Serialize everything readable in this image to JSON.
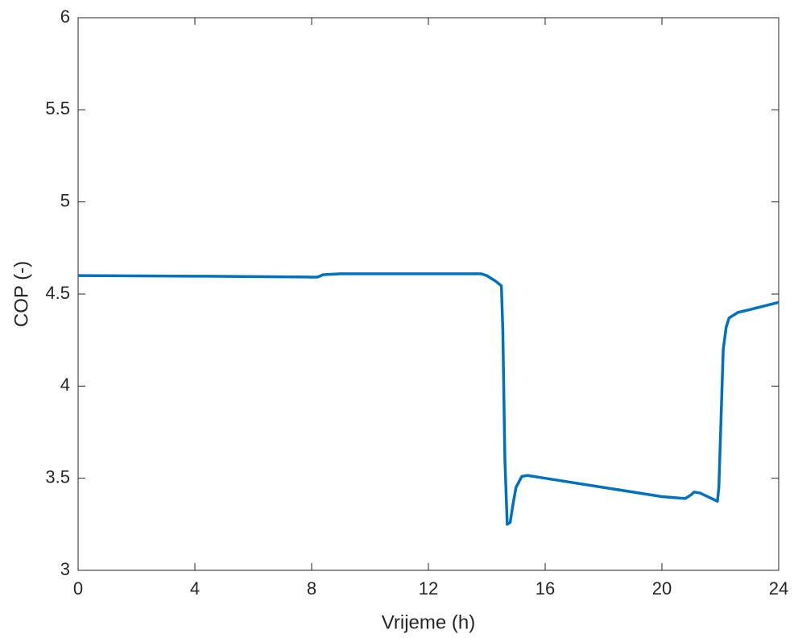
{
  "chart_data": {
    "type": "line",
    "x_label": "Vrijeme (h)",
    "y_label": "COP (-)",
    "x": [
      0,
      4,
      8,
      8.2,
      8.4,
      9,
      12,
      13.8,
      14.0,
      14.3,
      14.5,
      14.55,
      14.62,
      14.7,
      14.8,
      14.9,
      15.0,
      15.2,
      15.4,
      16,
      18,
      20,
      20.8,
      21.0,
      21.1,
      21.3,
      21.9,
      21.95,
      22.0,
      22.1,
      22.2,
      22.3,
      22.6,
      23,
      24
    ],
    "series": [
      {
        "name": "COP",
        "color": "#0072bd",
        "values": [
          4.6,
          4.597,
          4.592,
          4.592,
          4.605,
          4.61,
          4.61,
          4.61,
          4.6,
          4.57,
          4.545,
          4.3,
          3.6,
          3.25,
          3.26,
          3.36,
          3.45,
          3.51,
          3.515,
          3.5,
          3.45,
          3.4,
          3.39,
          3.41,
          3.425,
          3.42,
          3.375,
          3.45,
          3.7,
          4.2,
          4.32,
          4.37,
          4.4,
          4.415,
          4.455
        ]
      }
    ],
    "xlim": [
      0,
      24
    ],
    "xticks": [
      0,
      4,
      8,
      12,
      16,
      20,
      24
    ],
    "ylim": [
      3,
      6
    ],
    "yticks": [
      3,
      3.5,
      4,
      4.5,
      5,
      5.5,
      6
    ],
    "grid": false
  }
}
